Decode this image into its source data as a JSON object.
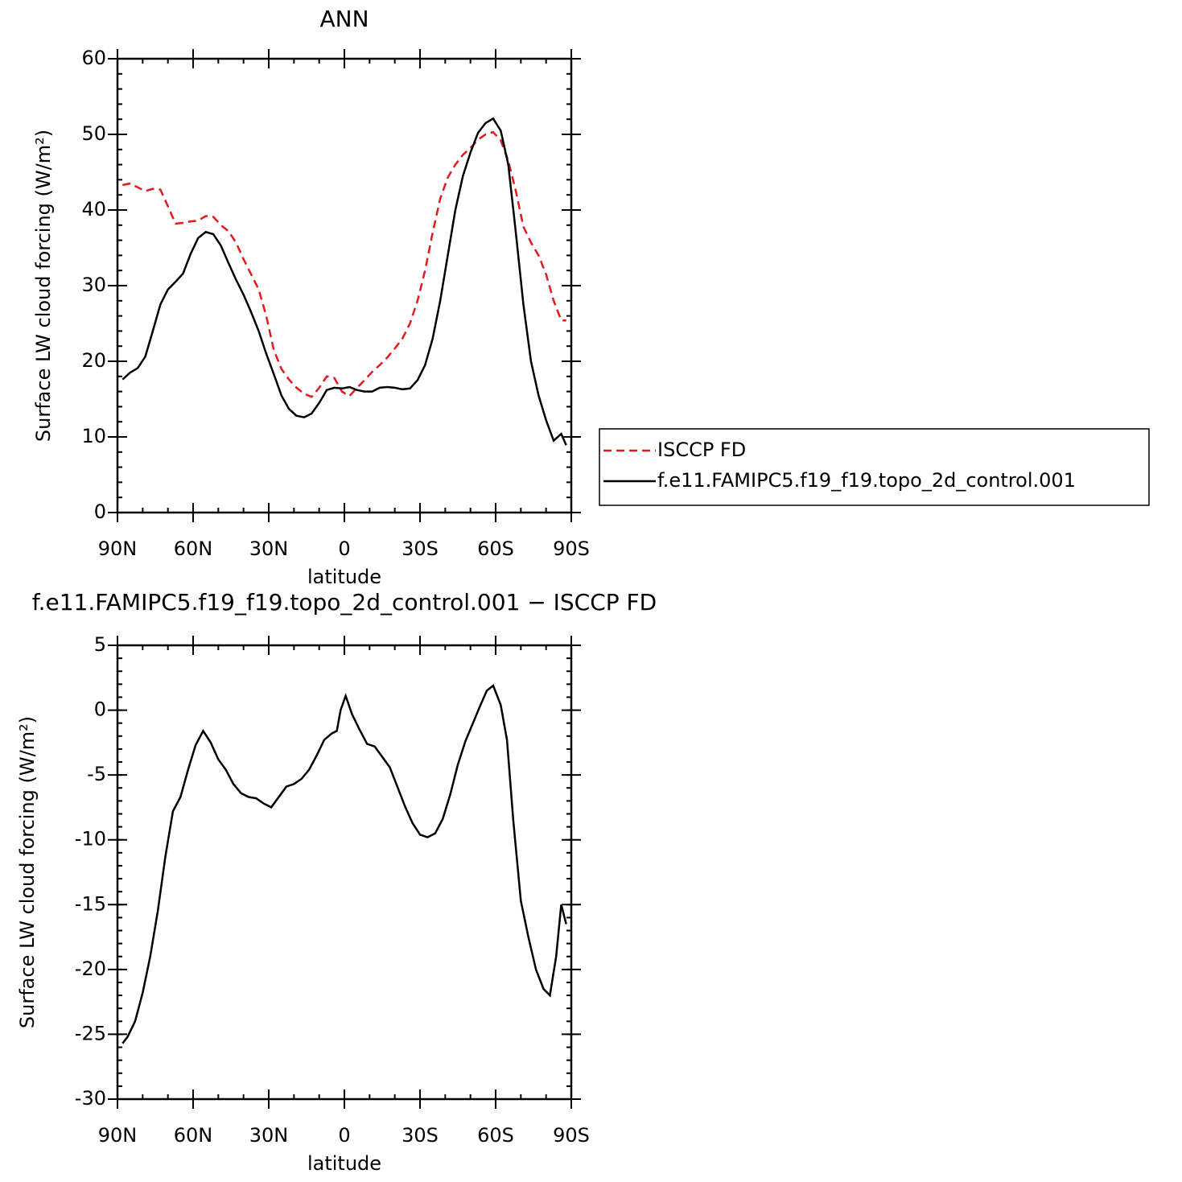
{
  "chart_data": [
    {
      "type": "line",
      "title": "ANN",
      "x_label": "latitude",
      "y_label": "Surface LW cloud forcing (W/m²)",
      "x": [
        88,
        85,
        82,
        79,
        76,
        73,
        70,
        67,
        64,
        61,
        58,
        55,
        52,
        49,
        46,
        43,
        40,
        37,
        34,
        31,
        28,
        25,
        22,
        19,
        16,
        13,
        10,
        7,
        4,
        1,
        -2,
        -5,
        -8,
        -11,
        -14,
        -17,
        -20,
        -23,
        -26,
        -29,
        -32,
        -35,
        -38,
        -41,
        -44,
        -47,
        -50,
        -53,
        -56,
        -59,
        -62,
        -65,
        -68,
        -71,
        -74,
        -77,
        -80,
        -83,
        -86,
        -88
      ],
      "series": [
        {
          "name": "ISCCP FD",
          "color": "#e41a1c",
          "style": "dashed",
          "values": [
            43.3,
            43.5,
            43,
            42.5,
            42.8,
            42.7,
            40.5,
            38.2,
            38.3,
            38.5,
            38.6,
            39.2,
            39.1,
            38,
            37.2,
            35.7,
            33.5,
            31.5,
            29.5,
            26,
            21.5,
            19,
            17.6,
            16.5,
            15.7,
            15.3,
            16.5,
            18,
            17.8,
            16,
            15.4,
            16.5,
            17.5,
            18.6,
            19.5,
            20.5,
            21.7,
            23,
            25,
            28,
            32,
            37,
            41.5,
            44.3,
            46,
            47.3,
            48.2,
            49.3,
            50,
            50.3,
            49.2,
            46.5,
            42.5,
            37.8,
            35.7,
            34,
            31.5,
            28,
            25.4,
            25.4
          ]
        },
        {
          "name": "f.e11.FAMIPC5.f19_f19.topo_2d_control.001",
          "color": "#000000",
          "style": "solid",
          "values": [
            17.6,
            18.5,
            19.1,
            20.6,
            24,
            27.5,
            29.5,
            30.5,
            31.6,
            34.2,
            36.3,
            37.1,
            36.8,
            35.3,
            33,
            30.8,
            28.8,
            26.5,
            24,
            21,
            18.3,
            15.5,
            13.7,
            12.8,
            12.6,
            13.1,
            14.5,
            16.2,
            16.5,
            16.4,
            16.6,
            16.2,
            16,
            16,
            16.5,
            16.6,
            16.5,
            16.3,
            16.4,
            17.5,
            19.5,
            23,
            28,
            34,
            40,
            44.5,
            47.6,
            50.2,
            51.5,
            52.1,
            50.5,
            46,
            37,
            27.5,
            20,
            15.5,
            12.2,
            9.5,
            10.4,
            8.9
          ]
        }
      ],
      "xlim": [
        90,
        -90
      ],
      "xticks": [
        {
          "value": 90,
          "label": "90N"
        },
        {
          "value": 60,
          "label": "60N"
        },
        {
          "value": 30,
          "label": "30N"
        },
        0,
        {
          "value": -30,
          "label": "30S"
        },
        {
          "value": -60,
          "label": "60S"
        },
        {
          "value": -90,
          "label": "90S"
        }
      ],
      "ylim": [
        0,
        60
      ],
      "yticks": [
        0,
        10,
        20,
        30,
        40,
        50,
        60
      ],
      "legend": "outside-right"
    },
    {
      "type": "line",
      "title": "f.e11.FAMIPC5.f19_f19.topo_2d_control.001 − ISCCP FD",
      "x_label": "latitude",
      "y_label": "Surface LW cloud forcing (W/m²)",
      "x": [
        88,
        86,
        83,
        80,
        77,
        74,
        71,
        68,
        65,
        62,
        59,
        56,
        53,
        50,
        47,
        44,
        41,
        38,
        35,
        32,
        29,
        26,
        23,
        20,
        17,
        14,
        11,
        8,
        5,
        3,
        1.5,
        -0.5,
        -3,
        -6,
        -9,
        -12,
        -15,
        -18,
        -21,
        -24,
        -27,
        -30,
        -33,
        -36,
        -39,
        -42,
        -45,
        -48,
        -51,
        -54,
        -56.5,
        -59,
        -62,
        -64.5,
        -67,
        -70,
        -73,
        -76,
        -79,
        -81.5,
        -84,
        -86,
        -88
      ],
      "values": [
        -25.7,
        -25.2,
        -24,
        -21.8,
        -19,
        -15.5,
        -11.3,
        -7.8,
        -6.7,
        -4.6,
        -2.7,
        -1.6,
        -2.5,
        -3.8,
        -4.6,
        -5.7,
        -6.4,
        -6.7,
        -6.8,
        -7.2,
        -7.5,
        -6.7,
        -5.9,
        -5.7,
        -5.3,
        -4.6,
        -3.5,
        -2.3,
        -1.8,
        -1.6,
        0,
        1.1,
        -0.3,
        -1.5,
        -2.6,
        -2.8,
        -3.6,
        -4.4,
        -5.9,
        -7.4,
        -8.7,
        -9.6,
        -9.8,
        -9.5,
        -8.4,
        -6.5,
        -4.2,
        -2.4,
        -1,
        0.4,
        1.5,
        1.9,
        0.4,
        -2.3,
        -8.5,
        -14.7,
        -17.5,
        -20,
        -21.5,
        -22,
        -19,
        -15,
        -16.5
      ],
      "color": "#000000",
      "xlim": [
        90,
        -90
      ],
      "xticks": [
        {
          "value": 90,
          "label": "90N"
        },
        {
          "value": 60,
          "label": "60N"
        },
        {
          "value": 30,
          "label": "30N"
        },
        0,
        {
          "value": -30,
          "label": "30S"
        },
        {
          "value": -60,
          "label": "60S"
        },
        {
          "value": -90,
          "label": "90S"
        }
      ],
      "ylim": [
        -30,
        5
      ],
      "yticks": [
        -30,
        -25,
        -20,
        -15,
        -10,
        -5,
        0,
        5
      ]
    }
  ]
}
